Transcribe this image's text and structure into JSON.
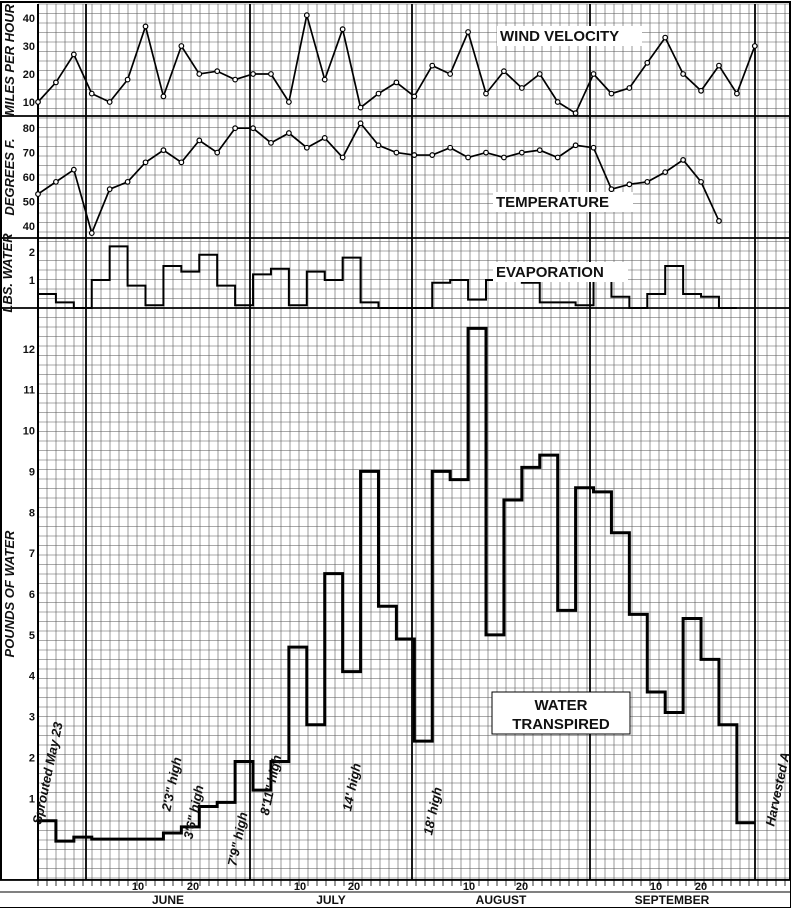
{
  "chart_data": [
    {
      "type": "line",
      "title": "WIND VELOCITY",
      "ylabel": "MILES PER HOUR",
      "ylim": [
        5,
        45
      ],
      "yticks": [
        "10",
        "20",
        "30",
        "40"
      ],
      "x_unit": "days from May 28",
      "points": [
        [
          0,
          10
        ],
        [
          4,
          17
        ],
        [
          8,
          27
        ],
        [
          12,
          13
        ],
        [
          16,
          10
        ],
        [
          20,
          18
        ],
        [
          24,
          37
        ],
        [
          28,
          12
        ],
        [
          32,
          30
        ],
        [
          36,
          20
        ],
        [
          40,
          21
        ],
        [
          44,
          18
        ],
        [
          48,
          20
        ],
        [
          52,
          20
        ],
        [
          56,
          10
        ],
        [
          60,
          41
        ],
        [
          64,
          18
        ],
        [
          68,
          36
        ],
        [
          72,
          8
        ],
        [
          76,
          13
        ],
        [
          80,
          17
        ],
        [
          84,
          12
        ],
        [
          88,
          23
        ],
        [
          92,
          20
        ],
        [
          96,
          35
        ],
        [
          100,
          13
        ],
        [
          104,
          21
        ],
        [
          108,
          15
        ],
        [
          112,
          20
        ],
        [
          116,
          10
        ],
        [
          120,
          6
        ],
        [
          124,
          20
        ],
        [
          128,
          13
        ],
        [
          132,
          15
        ],
        [
          136,
          24
        ],
        [
          140,
          33
        ],
        [
          144,
          20
        ],
        [
          148,
          14
        ],
        [
          152,
          23
        ],
        [
          156,
          13
        ],
        [
          160,
          30
        ]
      ]
    },
    {
      "type": "line",
      "title": "TEMPERATURE",
      "ylabel": "DEGREES F.",
      "ylim": [
        35,
        85
      ],
      "yticks": [
        "40",
        "50",
        "60",
        "70",
        "80"
      ],
      "points": [
        [
          0,
          53
        ],
        [
          4,
          58
        ],
        [
          8,
          63
        ],
        [
          12,
          37
        ],
        [
          16,
          55
        ],
        [
          20,
          58
        ],
        [
          24,
          66
        ],
        [
          28,
          71
        ],
        [
          32,
          66
        ],
        [
          36,
          75
        ],
        [
          40,
          70
        ],
        [
          44,
          80
        ],
        [
          48,
          80
        ],
        [
          52,
          74
        ],
        [
          56,
          78
        ],
        [
          60,
          72
        ],
        [
          64,
          76
        ],
        [
          68,
          68
        ],
        [
          72,
          82
        ],
        [
          76,
          73
        ],
        [
          80,
          70
        ],
        [
          84,
          69
        ],
        [
          88,
          69
        ],
        [
          92,
          72
        ],
        [
          96,
          68
        ],
        [
          100,
          70
        ],
        [
          104,
          68
        ],
        [
          108,
          70
        ],
        [
          112,
          71
        ],
        [
          116,
          68
        ],
        [
          120,
          73
        ],
        [
          124,
          72
        ],
        [
          128,
          55
        ],
        [
          132,
          57
        ],
        [
          136,
          58
        ],
        [
          140,
          62
        ],
        [
          144,
          67
        ],
        [
          148,
          58
        ],
        [
          152,
          42
        ]
      ]
    },
    {
      "type": "step",
      "title": "EVAPORATION",
      "ylabel": "LBS. WATER",
      "ylim": [
        0,
        2.5
      ],
      "yticks": [
        "1",
        "2"
      ],
      "segments": [
        [
          0,
          0.5
        ],
        [
          4,
          0.2
        ],
        [
          8,
          0
        ],
        [
          12,
          1.0
        ],
        [
          16,
          2.2
        ],
        [
          20,
          0.8
        ],
        [
          24,
          0.1
        ],
        [
          28,
          1.5
        ],
        [
          32,
          1.3
        ],
        [
          36,
          1.9
        ],
        [
          40,
          0.8
        ],
        [
          44,
          0.1
        ],
        [
          48,
          1.2
        ],
        [
          52,
          1.4
        ],
        [
          56,
          0.1
        ],
        [
          60,
          1.3
        ],
        [
          64,
          1.0
        ],
        [
          68,
          1.8
        ],
        [
          72,
          0.2
        ],
        [
          76,
          0
        ],
        [
          80,
          0
        ],
        [
          84,
          0
        ],
        [
          88,
          0.9
        ],
        [
          92,
          1.0
        ],
        [
          96,
          0.3
        ],
        [
          100,
          1.0
        ],
        [
          104,
          1.1
        ],
        [
          108,
          0.9
        ],
        [
          112,
          0.2
        ],
        [
          116,
          0.2
        ],
        [
          120,
          0.1
        ],
        [
          124,
          1.0
        ],
        [
          128,
          0.4
        ],
        [
          132,
          0
        ],
        [
          136,
          0.5
        ],
        [
          140,
          1.5
        ],
        [
          144,
          0.5
        ],
        [
          148,
          0.4
        ],
        [
          152,
          0
        ]
      ]
    },
    {
      "type": "step",
      "title": "WATER TRANSPIRED",
      "ylabel": "POUNDS OF WATER",
      "ylim": [
        -1,
        13
      ],
      "yticks": [
        "1",
        "2",
        "3",
        "4",
        "5",
        "6",
        "7",
        "8",
        "9",
        "10",
        "11",
        "12"
      ],
      "x_categories": [
        "JUNE",
        "JULY",
        "AUGUST",
        "SEPTEMBER"
      ],
      "x_day_ticks": [
        "10",
        "20",
        "10",
        "20",
        "10",
        "20",
        "10",
        "20"
      ],
      "segments": [
        [
          0,
          0.45
        ],
        [
          4,
          -0.05
        ],
        [
          8,
          0.05
        ],
        [
          12,
          0
        ],
        [
          16,
          0
        ],
        [
          20,
          0
        ],
        [
          24,
          0
        ],
        [
          28,
          0.15
        ],
        [
          32,
          0.3
        ],
        [
          36,
          0.8
        ],
        [
          40,
          0.9
        ],
        [
          44,
          1.9
        ],
        [
          48,
          1.2
        ],
        [
          52,
          1.9
        ],
        [
          56,
          4.7
        ],
        [
          60,
          2.8
        ],
        [
          64,
          6.5
        ],
        [
          68,
          4.1
        ],
        [
          72,
          9.0
        ],
        [
          76,
          5.7
        ],
        [
          80,
          4.9
        ],
        [
          84,
          2.4
        ],
        [
          88,
          9.0
        ],
        [
          92,
          8.8
        ],
        [
          96,
          12.5
        ],
        [
          100,
          5.0
        ],
        [
          104,
          8.3
        ],
        [
          108,
          9.1
        ],
        [
          112,
          9.4
        ],
        [
          116,
          5.6
        ],
        [
          120,
          8.6
        ],
        [
          124,
          8.5
        ],
        [
          128,
          7.5
        ],
        [
          132,
          5.5
        ],
        [
          136,
          3.6
        ],
        [
          140,
          3.1
        ],
        [
          144,
          5.4
        ],
        [
          148,
          4.4
        ],
        [
          152,
          2.8
        ],
        [
          156,
          0.4
        ]
      ],
      "annotations": [
        "Sprouted May 23",
        "2'3\" high",
        "3'6\" high",
        "7'9\" high",
        "8'11\" high",
        "14' high",
        "18' high",
        "Harvested A"
      ]
    }
  ]
}
